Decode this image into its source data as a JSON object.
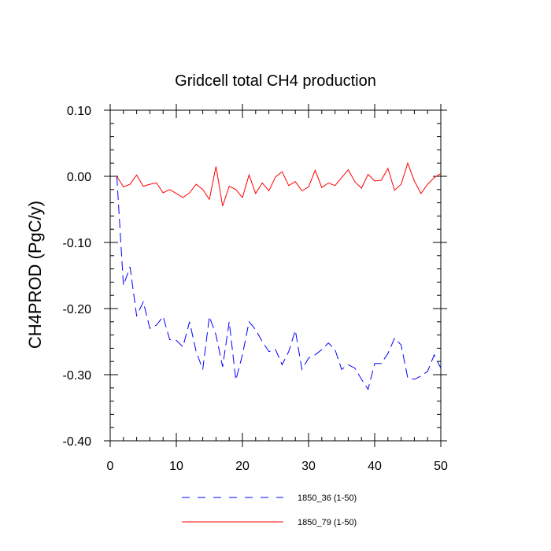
{
  "chart_data": {
    "type": "line",
    "title": "Gridcell total CH4 production",
    "xlabel": "",
    "ylabel": "CH4PROD  (PgC/y)",
    "xlim": [
      0,
      50
    ],
    "ylim": [
      -0.4,
      0.1
    ],
    "xticks": [
      0,
      10,
      20,
      30,
      40,
      50
    ],
    "xtick_labels": [
      "0",
      "10",
      "20",
      "30",
      "40",
      "50"
    ],
    "yticks": [
      -0.4,
      -0.3,
      -0.2,
      -0.1,
      0.0,
      0.1
    ],
    "ytick_labels": [
      "-0.40",
      "-0.30",
      "-0.20",
      "-0.10",
      "0.00",
      "0.10"
    ],
    "grid": false,
    "legend_position": "bottom-center",
    "series": [
      {
        "name": "1850_36 (1-50)",
        "color": "#0000ff",
        "style": "dashed",
        "x": [
          1,
          2,
          3,
          4,
          5,
          6,
          7,
          8,
          9,
          10,
          11,
          12,
          13,
          14,
          15,
          16,
          17,
          18,
          19,
          20,
          21,
          22,
          23,
          24,
          25,
          26,
          27,
          28,
          29,
          30,
          31,
          32,
          33,
          34,
          35,
          36,
          37,
          38,
          39,
          40,
          41,
          42,
          43,
          44,
          45,
          46,
          47,
          48,
          49,
          50
        ],
        "values": [
          0.0,
          -0.165,
          -0.137,
          -0.211,
          -0.19,
          -0.23,
          -0.225,
          -0.212,
          -0.247,
          -0.248,
          -0.258,
          -0.22,
          -0.265,
          -0.292,
          -0.212,
          -0.24,
          -0.288,
          -0.22,
          -0.308,
          -0.27,
          -0.22,
          -0.232,
          -0.25,
          -0.265,
          -0.262,
          -0.285,
          -0.265,
          -0.233,
          -0.292,
          -0.275,
          -0.27,
          -0.262,
          -0.252,
          -0.262,
          -0.292,
          -0.285,
          -0.29,
          -0.307,
          -0.322,
          -0.283,
          -0.283,
          -0.268,
          -0.245,
          -0.255,
          -0.305,
          -0.307,
          -0.302,
          -0.295,
          -0.27,
          -0.29
        ]
      },
      {
        "name": "1850_79 (1-50)",
        "color": "#ff0000",
        "style": "solid",
        "x": [
          1,
          2,
          3,
          4,
          5,
          6,
          7,
          8,
          9,
          10,
          11,
          12,
          13,
          14,
          15,
          16,
          17,
          18,
          19,
          20,
          21,
          22,
          23,
          24,
          25,
          26,
          27,
          28,
          29,
          30,
          31,
          32,
          33,
          34,
          35,
          36,
          37,
          38,
          39,
          40,
          41,
          42,
          43,
          44,
          45,
          46,
          47,
          48,
          49,
          50
        ],
        "values": [
          0.0,
          -0.016,
          -0.012,
          0.002,
          -0.015,
          -0.012,
          -0.01,
          -0.025,
          -0.02,
          -0.026,
          -0.032,
          -0.025,
          -0.012,
          -0.02,
          -0.035,
          0.015,
          -0.045,
          -0.015,
          -0.02,
          -0.032,
          0.002,
          -0.026,
          -0.01,
          -0.022,
          -0.001,
          0.007,
          -0.014,
          -0.008,
          -0.022,
          -0.016,
          0.009,
          -0.017,
          -0.01,
          -0.014,
          -0.002,
          0.01,
          -0.008,
          -0.018,
          0.003,
          -0.007,
          -0.006,
          0.012,
          -0.021,
          -0.012,
          0.02,
          -0.007,
          -0.026,
          -0.012,
          -0.002,
          0.004
        ]
      }
    ]
  }
}
